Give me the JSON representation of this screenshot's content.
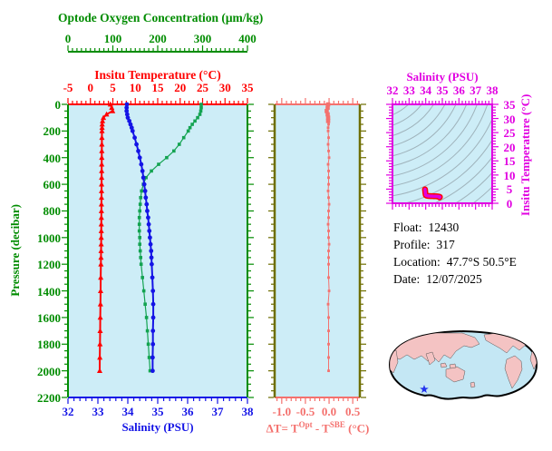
{
  "colors": {
    "axis_green": "#008C00",
    "oxygen_curve": "#13A351",
    "temp_red": "#FF0000",
    "sal_blue": "#1414E6",
    "magenta": "#E100E1",
    "salmon": "#F4716E",
    "olive": "#6E6E00",
    "plot_bg": "#CDEDF7",
    "contour_gray": "#97A8B0",
    "map_ocean": "#C4E7F4",
    "map_land": "#F4C3C3",
    "map_outline": "#000000",
    "star_blue": "#2233EE",
    "info_text": "#000000"
  },
  "axes": {
    "oxygen": {
      "title": "Optode Oxygen Concentration (μm/kg)",
      "tick_labels": [
        "0",
        "100",
        "200",
        "300",
        "400"
      ],
      "tick_values": [
        0,
        100,
        200,
        300,
        400
      ],
      "range": [
        0,
        400
      ],
      "minor_step": 10
    },
    "temperature": {
      "title": "Insitu Temperature (°C)",
      "tick_labels": [
        "-5",
        "0",
        "5",
        "10",
        "15",
        "20",
        "25",
        "30",
        "35"
      ],
      "tick_values": [
        -5,
        0,
        5,
        10,
        15,
        20,
        25,
        30,
        35
      ],
      "range": [
        -5,
        35
      ],
      "minor_step": 1
    },
    "salinity": {
      "title": "Salinity (PSU)",
      "tick_labels": [
        "32",
        "33",
        "34",
        "35",
        "36",
        "37",
        "38"
      ],
      "tick_values": [
        32,
        33,
        34,
        35,
        36,
        37,
        38
      ],
      "range": [
        32,
        38
      ],
      "minor_step": 0.2
    },
    "pressure": {
      "title": "Pressure (decibar)",
      "tick_labels": [
        "0",
        "200",
        "400",
        "600",
        "800",
        "1000",
        "1200",
        "1400",
        "1600",
        "1800",
        "2000",
        "2200"
      ],
      "tick_values": [
        0,
        200,
        400,
        600,
        800,
        1000,
        1200,
        1400,
        1600,
        1800,
        2000,
        2200
      ],
      "range": [
        0,
        2200
      ],
      "minor_step": 50
    },
    "delta_t": {
      "title_parts": {
        "prefix": "ΔT= T",
        "sup1": "Opt",
        "mid": " - T",
        "sup2": "SBE",
        "suffix": " (°C)"
      },
      "tick_labels": [
        "-1.0",
        "-0.5",
        "0.0",
        "0.5"
      ],
      "tick_values": [
        -1,
        -0.5,
        0,
        0.5
      ],
      "range": [
        -1.15,
        0.65
      ],
      "minor_step": 0.1
    },
    "ts_salinity": {
      "title": "Salinity (PSU)",
      "tick_labels": [
        "32",
        "33",
        "34",
        "35",
        "36",
        "37",
        "38"
      ],
      "tick_values": [
        32,
        33,
        34,
        35,
        36,
        37,
        38
      ],
      "range": [
        32,
        38
      ],
      "minor_step": 0.2
    },
    "ts_temperature": {
      "title": "Insitu Temperature (°C)",
      "tick_labels": [
        "0",
        "5",
        "10",
        "15",
        "20",
        "25",
        "30",
        "35"
      ],
      "tick_values": [
        0,
        5,
        10,
        15,
        20,
        25,
        30,
        35
      ],
      "range": [
        0,
        35
      ],
      "minor_step": 1
    }
  },
  "info": {
    "float_label": "Float:",
    "float_value": "12430",
    "profile_label": "Profile:",
    "profile_value": "317",
    "location_label": "Location:",
    "location_value": "47.7°S  50.5°E",
    "date_label": "Date:",
    "date_value": "12/07/2025"
  },
  "chart_data": {
    "type": "line",
    "panels": [
      {
        "id": "profile-panel",
        "y_axis": "pressure",
        "x_axes": [
          "oxygen",
          "temperature",
          "salinity"
        ],
        "series": [
          "temperature",
          "salinity",
          "oxygen"
        ]
      },
      {
        "id": "delta-t-panel",
        "y_axis": "pressure",
        "x_axes": [
          "delta_t"
        ],
        "series": [
          "delta_t"
        ]
      },
      {
        "id": "ts-diagram",
        "x_axis": "ts_salinity",
        "y_axis": "ts_temperature",
        "series": [
          "ts_curve"
        ],
        "isopycnal_contours": 17
      },
      {
        "id": "location-map",
        "marker": "blue-star",
        "marker_location": "47.7°S 50.5°E"
      }
    ],
    "profiles": {
      "pressure": [
        0,
        25,
        50,
        75,
        100,
        125,
        150,
        175,
        200,
        250,
        300,
        350,
        400,
        450,
        500,
        550,
        600,
        650,
        700,
        750,
        800,
        850,
        900,
        950,
        1000,
        1050,
        1100,
        1150,
        1200,
        1300,
        1400,
        1500,
        1600,
        1700,
        1800,
        1900,
        2000
      ],
      "temperature": [
        4.45,
        4.75,
        4.95,
        3.6,
        2.9,
        2.7,
        2.62,
        2.6,
        2.58,
        2.56,
        2.55,
        2.54,
        2.53,
        2.52,
        2.51,
        2.5,
        2.49,
        2.48,
        2.47,
        2.46,
        2.45,
        2.44,
        2.43,
        2.42,
        2.41,
        2.4,
        2.38,
        2.36,
        2.34,
        2.3,
        2.27,
        2.24,
        2.2,
        2.17,
        2.13,
        2.1,
        2.07
      ],
      "salinity": [
        33.97,
        33.96,
        33.96,
        33.98,
        34.0,
        34.05,
        34.09,
        34.13,
        34.16,
        34.23,
        34.29,
        34.35,
        34.4,
        34.45,
        34.49,
        34.52,
        34.55,
        34.58,
        34.6,
        34.63,
        34.65,
        34.68,
        34.7,
        34.72,
        34.74,
        34.76,
        34.78,
        34.79,
        34.8,
        34.82,
        34.84,
        34.85,
        34.85,
        34.84,
        34.84,
        34.83,
        34.83
      ],
      "oxygen": [
        297,
        297,
        296,
        294,
        289,
        283,
        277,
        272,
        268,
        258,
        248,
        236,
        220,
        202,
        186,
        174,
        168,
        164,
        162,
        161,
        160,
        159,
        159,
        159,
        160,
        160,
        161,
        162,
        163,
        166,
        169,
        172,
        175,
        177,
        179,
        181,
        183
      ],
      "delta_t": [
        -0.02,
        -0.03,
        -0.05,
        -0.03,
        -0.02,
        -0.02,
        -0.01,
        -0.02,
        -0.02,
        -0.01,
        -0.02,
        -0.01,
        0.0,
        -0.02,
        -0.01,
        -0.01,
        -0.01,
        -0.02,
        -0.01,
        0.0,
        -0.01,
        -0.01,
        -0.02,
        -0.01,
        -0.01,
        0.0,
        -0.01,
        -0.01,
        -0.01,
        -0.01,
        0.0,
        -0.02,
        -0.01,
        -0.01,
        -0.01,
        -0.01,
        -0.01
      ]
    }
  }
}
